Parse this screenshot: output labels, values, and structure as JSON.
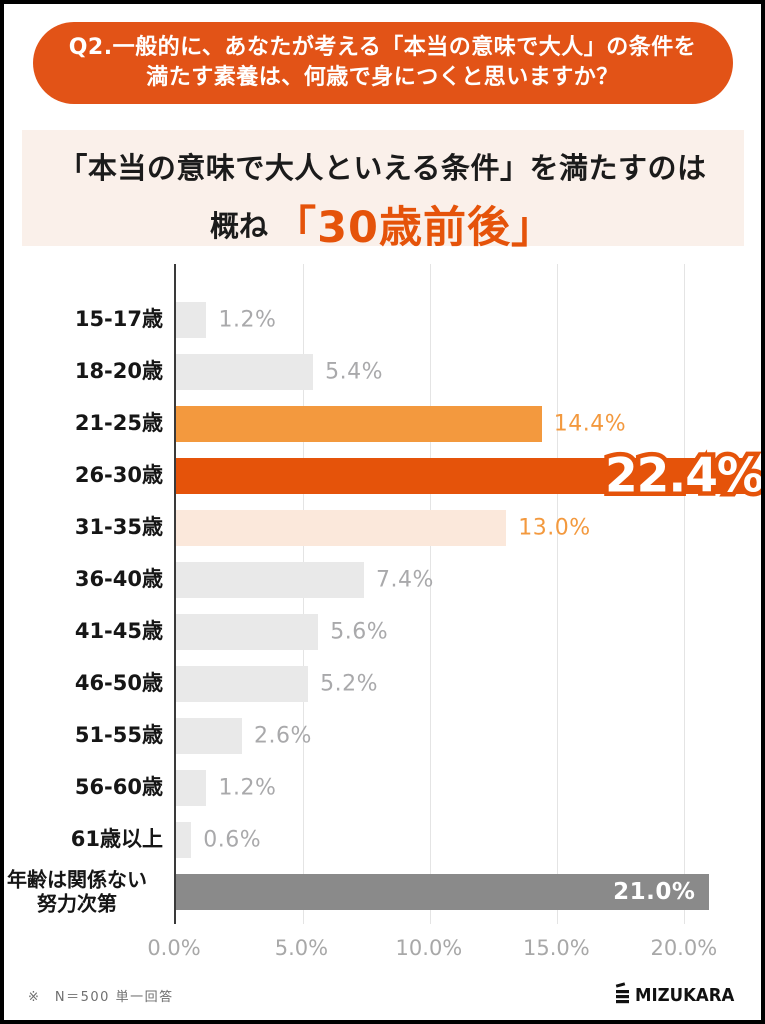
{
  "question_banner": {
    "line1": "Q2.一般的に、あなたが考える「本当の意味で大人」の条件を",
    "line2": "満たす素養は、何歳で身につくと思いますか？"
  },
  "headline": {
    "line1": "「本当の意味で大人といえる条件」を満たすのは",
    "line2_prefix": "概ね",
    "line2_highlight": "「30歳前後」"
  },
  "palette": {
    "banner_bg": "#e25317",
    "band_bg": "#faf0ea",
    "accent_dark": "#e5530a",
    "accent_mid": "#f3993e",
    "accent_pale": "#fbe8db",
    "bar_gray": "#e9e9e9",
    "bar_darkgray": "#8a8a8a",
    "value_gray": "#a9a9ab",
    "tick_gray": "#a8a8a8"
  },
  "chart_data": {
    "type": "bar",
    "orientation": "horizontal",
    "title": "「本当の意味で大人といえる条件」を満たすのは 概ね「30歳前後」",
    "xlabel": "",
    "ylabel": "",
    "unit": "%",
    "grid": true,
    "xlim": [
      0,
      22.4
    ],
    "x_tick_values": [
      0,
      5,
      10,
      15,
      20
    ],
    "x_tick_labels": [
      "0.0%",
      "5.0%",
      "10.0%",
      "15.0%",
      "20.0%"
    ],
    "categories": [
      "15-17歳",
      "18-20歳",
      "21-25歳",
      "26-30歳",
      "31-35歳",
      "36-40歳",
      "41-45歳",
      "46-50歳",
      "51-55歳",
      "56-60歳",
      "61歳以上",
      "年齢は関係ない 努力次第"
    ],
    "values": [
      1.2,
      5.4,
      14.4,
      22.4,
      13.0,
      7.4,
      5.6,
      5.2,
      2.6,
      1.2,
      0.6,
      21.0
    ],
    "items": [
      {
        "label_lines": [
          "15-17歳"
        ],
        "value": 1.2,
        "display": "1.2%",
        "bar_color_key": "bar_gray",
        "value_style": "gray-out"
      },
      {
        "label_lines": [
          "18-20歳"
        ],
        "value": 5.4,
        "display": "5.4%",
        "bar_color_key": "bar_gray",
        "value_style": "gray-out"
      },
      {
        "label_lines": [
          "21-25歳"
        ],
        "value": 14.4,
        "display": "14.4%",
        "bar_color_key": "accent_mid",
        "value_style": "orange-out"
      },
      {
        "label_lines": [
          "26-30歳"
        ],
        "value": 22.4,
        "display": "22.4%",
        "bar_color_key": "accent_dark",
        "value_style": "white-outline"
      },
      {
        "label_lines": [
          "31-35歳"
        ],
        "value": 13.0,
        "display": "13.0%",
        "bar_color_key": "accent_pale",
        "value_style": "orange-out"
      },
      {
        "label_lines": [
          "36-40歳"
        ],
        "value": 7.4,
        "display": "7.4%",
        "bar_color_key": "bar_gray",
        "value_style": "gray-out"
      },
      {
        "label_lines": [
          "41-45歳"
        ],
        "value": 5.6,
        "display": "5.6%",
        "bar_color_key": "bar_gray",
        "value_style": "gray-out"
      },
      {
        "label_lines": [
          "46-50歳"
        ],
        "value": 5.2,
        "display": "5.2%",
        "bar_color_key": "bar_gray",
        "value_style": "gray-out"
      },
      {
        "label_lines": [
          "51-55歳"
        ],
        "value": 2.6,
        "display": "2.6%",
        "bar_color_key": "bar_gray",
        "value_style": "gray-out"
      },
      {
        "label_lines": [
          "56-60歳"
        ],
        "value": 1.2,
        "display": "1.2%",
        "bar_color_key": "bar_gray",
        "value_style": "gray-out"
      },
      {
        "label_lines": [
          "61歳以上"
        ],
        "value": 0.6,
        "display": "0.6%",
        "bar_color_key": "bar_gray",
        "value_style": "gray-out"
      },
      {
        "label_lines": [
          "年齢は関係ない",
          "努力次第"
        ],
        "value": 21.0,
        "display": "21.0%",
        "bar_color_key": "bar_darkgray",
        "value_style": "white-in"
      }
    ],
    "legend": null
  },
  "footer": {
    "note": "※　N＝500 単一回答",
    "logo_text": "MIZUKARA"
  }
}
